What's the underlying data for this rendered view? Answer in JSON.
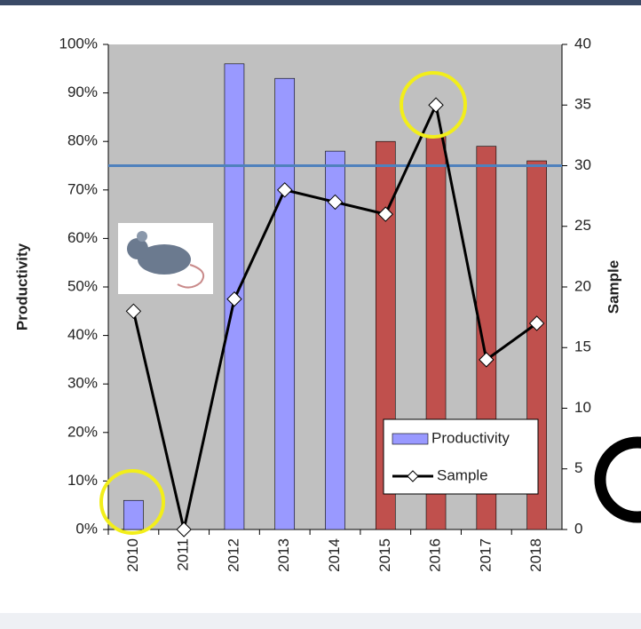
{
  "chart_data": {
    "type": "bar-line",
    "categories": [
      "2010",
      "2011",
      "2012",
      "2013",
      "2014",
      "2015",
      "2016",
      "2017",
      "2018"
    ],
    "series": [
      {
        "name": "Productivity",
        "type": "bar",
        "color": "#9999ff",
        "colors": [
          "#9999ff",
          "#9999ff",
          "#9999ff",
          "#9999ff",
          "#9999ff",
          "#c0504d",
          "#c0504d",
          "#c0504d",
          "#c0504d"
        ],
        "values": [
          6,
          0,
          96,
          93,
          78,
          80,
          81,
          79,
          76
        ]
      },
      {
        "name": "Sample",
        "type": "line",
        "axis": "y2",
        "color": "#000000",
        "values": [
          18,
          0,
          19,
          28,
          27,
          26,
          35,
          14,
          17
        ]
      }
    ],
    "y_label": "Productivity",
    "y2_label": "Sample",
    "ylim": [
      0,
      100
    ],
    "yticks": [
      {
        "value": 0,
        "label": "0%"
      },
      {
        "value": 10,
        "label": "10%"
      },
      {
        "value": 20,
        "label": "20%"
      },
      {
        "value": 30,
        "label": "30%"
      },
      {
        "value": 40,
        "label": "40%"
      },
      {
        "value": 50,
        "label": "50%"
      },
      {
        "value": 60,
        "label": "60%"
      },
      {
        "value": 70,
        "label": "70%"
      },
      {
        "value": 80,
        "label": "80%"
      },
      {
        "value": 90,
        "label": "90%"
      },
      {
        "value": 100,
        "label": "100%"
      }
    ],
    "y2lim": [
      0,
      40
    ],
    "y2ticks": [
      0,
      5,
      10,
      15,
      20,
      25,
      30,
      35,
      40
    ],
    "reference_line": {
      "axis": "y2",
      "value": 30,
      "color": "#4f81bd"
    },
    "legend": "lower-right",
    "plot_background": "#c0c0c0"
  }
}
